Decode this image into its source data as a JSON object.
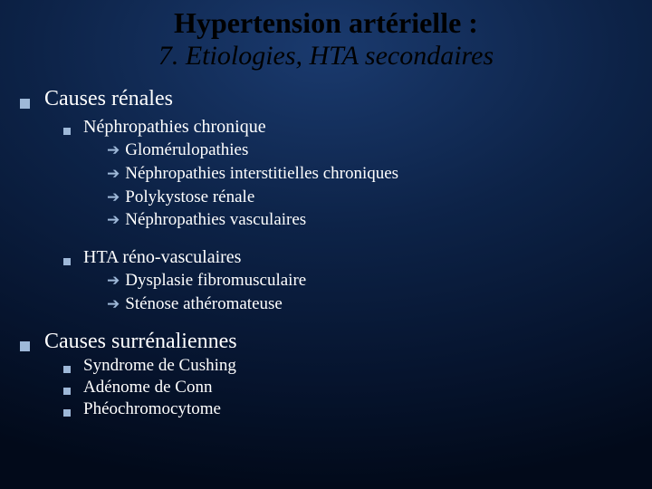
{
  "colors": {
    "bg_center": "#1a3a6e",
    "bg_mid": "#0d2348",
    "bg_outer": "#020a1a",
    "title_color": "#000000",
    "text_color": "#ffffff",
    "bullet_color": "#9eb8d8"
  },
  "typography": {
    "title_fontsize": 32,
    "subtitle_fontsize": 30,
    "l1_fontsize": 24,
    "l2_fontsize": 20,
    "l3_fontsize": 19,
    "font_family": "Times New Roman"
  },
  "title": "Hypertension artérielle :",
  "subtitle": "7. Etiologies, HTA secondaires",
  "sections": [
    {
      "label": "Causes rénales",
      "items": [
        {
          "label": "Néphropathies chronique",
          "sub": [
            "Glomérulopathies",
            "Néphropathies interstitielles chroniques",
            "Polykystose rénale",
            "Néphropathies vasculaires"
          ]
        },
        {
          "label": "HTA réno-vasculaires",
          "sub": [
            "Dysplasie fibromusculaire",
            "Sténose athéromateuse"
          ]
        }
      ]
    },
    {
      "label": "Causes surrénaliennes",
      "simple_items": [
        "Syndrome de Cushing",
        "Adénome de Conn",
        "Phéochromocytome"
      ]
    }
  ]
}
